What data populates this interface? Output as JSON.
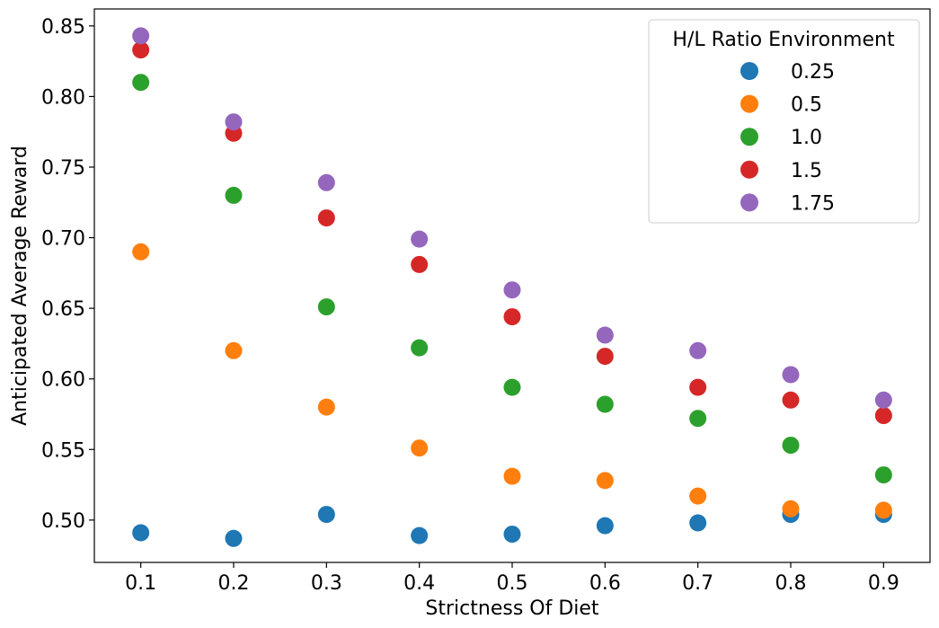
{
  "chart_data": {
    "type": "scatter",
    "title": "",
    "xlabel": "Strictness Of Diet",
    "ylabel": "Anticipated Average Reward",
    "xlim": [
      0.05,
      0.95
    ],
    "ylim": [
      0.47,
      0.862
    ],
    "x_ticks": [
      0.1,
      0.2,
      0.3,
      0.4,
      0.5,
      0.6,
      0.7,
      0.8,
      0.9
    ],
    "x_tick_labels": [
      "0.1",
      "0.2",
      "0.3",
      "0.4",
      "0.5",
      "0.6",
      "0.7",
      "0.8",
      "0.9"
    ],
    "y_ticks": [
      0.5,
      0.55,
      0.6,
      0.65,
      0.7,
      0.75,
      0.8,
      0.85
    ],
    "y_tick_labels": [
      "0.50",
      "0.55",
      "0.60",
      "0.65",
      "0.70",
      "0.75",
      "0.80",
      "0.85"
    ],
    "grid": false,
    "legend": {
      "title": "H/L Ratio Environment",
      "position": "top-right"
    },
    "x": [
      0.1,
      0.2,
      0.3,
      0.4,
      0.5,
      0.6,
      0.7,
      0.8,
      0.9
    ],
    "series": [
      {
        "name": "0.25",
        "color": "#1f77b4",
        "values": [
          0.491,
          0.487,
          0.504,
          0.489,
          0.49,
          0.496,
          0.498,
          0.504,
          0.504
        ]
      },
      {
        "name": "0.5",
        "color": "#ff7f0e",
        "values": [
          0.69,
          0.62,
          0.58,
          0.551,
          0.531,
          0.528,
          0.517,
          0.508,
          0.507
        ]
      },
      {
        "name": "1.0",
        "color": "#2ca02c",
        "values": [
          0.81,
          0.73,
          0.651,
          0.622,
          0.594,
          0.582,
          0.572,
          0.553,
          0.532
        ]
      },
      {
        "name": "1.5",
        "color": "#d62728",
        "values": [
          0.833,
          0.774,
          0.714,
          0.681,
          0.644,
          0.616,
          0.594,
          0.585,
          0.574
        ]
      },
      {
        "name": "1.75",
        "color": "#9467bd",
        "values": [
          0.843,
          0.782,
          0.739,
          0.699,
          0.663,
          0.631,
          0.62,
          0.603,
          0.585
        ]
      }
    ]
  }
}
